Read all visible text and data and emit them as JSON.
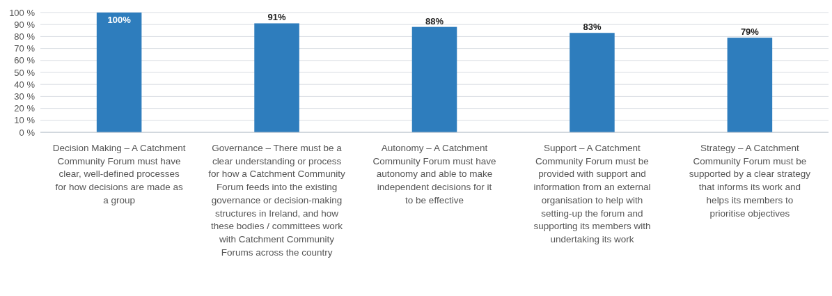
{
  "chart_data": {
    "type": "bar",
    "categories": [
      "Decision Making – A Catchment Community Forum must have clear, well-defined processes for how decisions are made as a group",
      "Governance – There must be a clear understanding or process for how a Catchment Community Forum feeds into the existing governance or decision-making structures in Ireland, and how these bodies / committees work with Catchment Community Forums across the country",
      "Autonomy – A Catchment Community Forum must have autonomy and able to make independent decisions for it to be effective",
      "Support – A Catchment Community Forum must be provided with support and information from an external organisation to help with setting-up the forum and supporting its members with undertaking its work",
      "Strategy – A Catchment Community Forum must be supported by a clear strategy that informs its work and helps its members to prioritise objectives"
    ],
    "values": [
      100,
      91,
      88,
      83,
      79
    ],
    "color": "#2e7dbd",
    "ylim": [
      0,
      100
    ],
    "yticks": [
      {
        "value": 0,
        "label": "0 %"
      },
      {
        "value": 10,
        "label": "10 %"
      },
      {
        "value": 20,
        "label": "20 %"
      },
      {
        "value": 30,
        "label": "30 %"
      },
      {
        "value": 40,
        "label": "40 %"
      },
      {
        "value": 50,
        "label": "50 %"
      },
      {
        "value": 60,
        "label": "60 %"
      },
      {
        "value": 70,
        "label": "70 %"
      },
      {
        "value": 80,
        "label": "80 %"
      },
      {
        "value": 90,
        "label": "90 %"
      },
      {
        "value": 100,
        "label": "100 %"
      }
    ],
    "grid": true,
    "value_labels": [
      "100%",
      "91%",
      "88%",
      "83%",
      "79%"
    ]
  }
}
